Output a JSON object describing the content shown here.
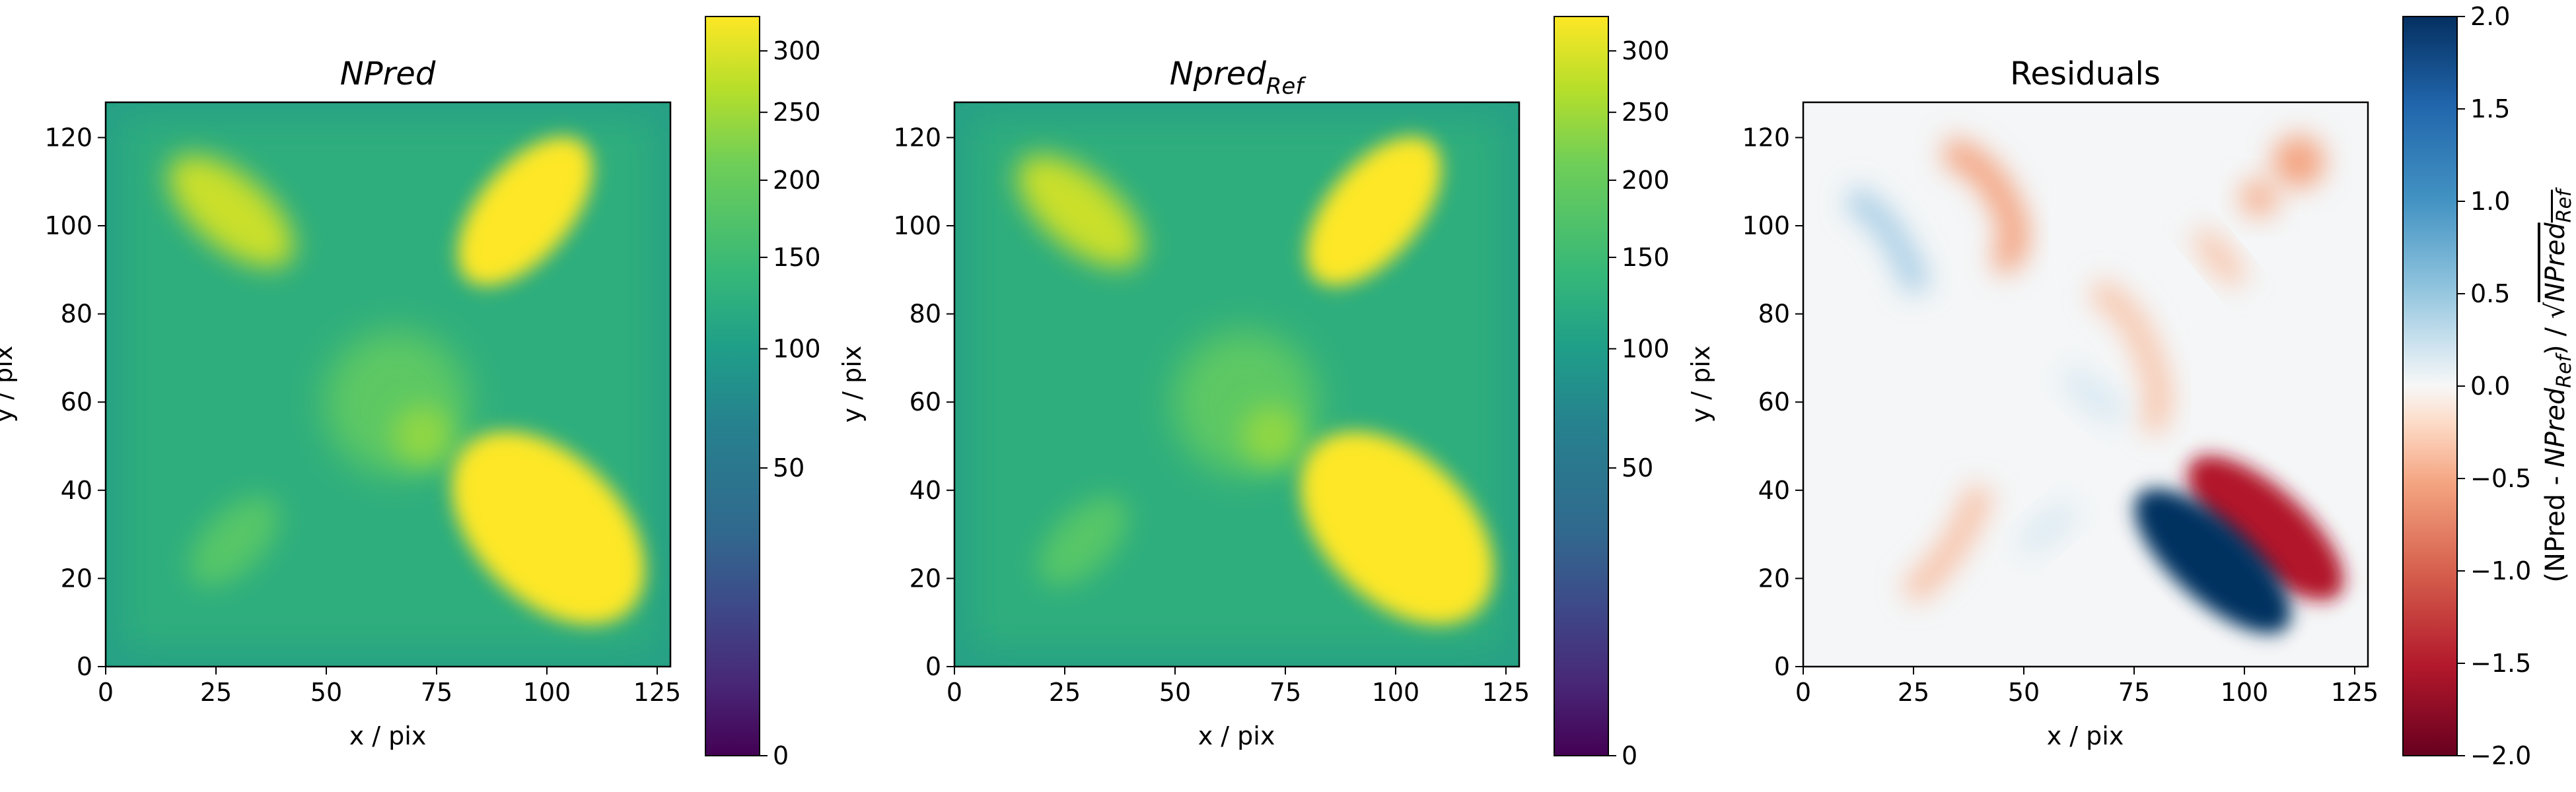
{
  "chart_data": [
    {
      "type": "heatmap",
      "title": "NPred",
      "title_style": "italic",
      "xlabel": "x / pix",
      "ylabel": "y / pix",
      "xlim": [
        0,
        128
      ],
      "ylim": [
        0,
        128
      ],
      "x_ticks": [
        0,
        25,
        50,
        75,
        100,
        125
      ],
      "y_ticks": [
        0,
        20,
        40,
        60,
        80,
        100,
        120
      ],
      "colormap": "viridis",
      "colorbar": {
        "scale": "sqrt",
        "range": [
          0,
          330
        ],
        "ticks": [
          0,
          50,
          100,
          150,
          200,
          250,
          300
        ],
        "label": ""
      },
      "grid": false,
      "features": [
        {
          "kind": "background",
          "value": 95
        },
        {
          "kind": "elongated-blob",
          "cx": 28,
          "cy": 102,
          "value": 260
        },
        {
          "kind": "elongated-blob",
          "cx": 100,
          "cy": 102,
          "value": 330
        },
        {
          "kind": "round-blob",
          "cx": 66,
          "cy": 62,
          "value": 160
        },
        {
          "kind": "round-blob",
          "cx": 30,
          "cy": 29,
          "value": 135
        },
        {
          "kind": "elongated-blob",
          "cx": 98,
          "cy": 30,
          "value": 330
        }
      ]
    },
    {
      "type": "heatmap",
      "title": "Npred",
      "title_sub": "Ref",
      "title_style": "italic",
      "xlabel": "x / pix",
      "ylabel": "y / pix",
      "xlim": [
        0,
        128
      ],
      "ylim": [
        0,
        128
      ],
      "x_ticks": [
        0,
        25,
        50,
        75,
        100,
        125
      ],
      "y_ticks": [
        0,
        20,
        40,
        60,
        80,
        100,
        120
      ],
      "colormap": "viridis",
      "colorbar": {
        "scale": "sqrt",
        "range": [
          0,
          330
        ],
        "ticks": [
          0,
          50,
          100,
          150,
          200,
          250,
          300
        ],
        "label": ""
      },
      "grid": false,
      "features": [
        {
          "kind": "background",
          "value": 95
        },
        {
          "kind": "elongated-blob",
          "cx": 28,
          "cy": 102,
          "value": 260
        },
        {
          "kind": "elongated-blob",
          "cx": 100,
          "cy": 102,
          "value": 330
        },
        {
          "kind": "round-blob",
          "cx": 66,
          "cy": 62,
          "value": 160
        },
        {
          "kind": "round-blob",
          "cx": 30,
          "cy": 29,
          "value": 135
        },
        {
          "kind": "elongated-blob",
          "cx": 98,
          "cy": 30,
          "value": 330
        }
      ]
    },
    {
      "type": "heatmap",
      "title": "Residuals",
      "xlabel": "x / pix",
      "ylabel": "y / pix",
      "xlim": [
        0,
        128
      ],
      "ylim": [
        0,
        128
      ],
      "x_ticks": [
        0,
        25,
        50,
        75,
        100,
        125
      ],
      "y_ticks": [
        0,
        20,
        40,
        60,
        80,
        100,
        120
      ],
      "colormap": "RdBu",
      "colorbar": {
        "scale": "linear",
        "range": [
          -2.0,
          2.0
        ],
        "ticks": [
          -2.0,
          -1.5,
          -1.0,
          -0.5,
          0.0,
          0.5,
          1.0,
          1.5,
          2.0
        ],
        "tick_labels": [
          "−2.0",
          "−1.5",
          "−1.0",
          "−0.5",
          "0.0",
          "0.5",
          "1.0",
          "1.5",
          "2.0"
        ],
        "label": "(NPred - NPred_Ref) / √NPred_Ref"
      },
      "grid": false,
      "features": [
        {
          "kind": "negative-lobe",
          "cx": 106,
          "cy": 32,
          "value": -2.0
        },
        {
          "kind": "positive-lobe",
          "cx": 93,
          "cy": 24,
          "value": 2.0
        },
        {
          "kind": "negative-arc",
          "cx": 33,
          "cy": 107,
          "value": -0.4
        },
        {
          "kind": "positive-arc",
          "cx": 24,
          "cy": 95,
          "value": 0.3
        },
        {
          "kind": "negative-spots",
          "cx": 112,
          "cy": 108,
          "value": -0.4
        },
        {
          "kind": "negative-arc",
          "cx": 34,
          "cy": 28,
          "value": -0.3
        },
        {
          "kind": "negative-arc",
          "cx": 75,
          "cy": 72,
          "value": -0.3
        }
      ]
    }
  ]
}
